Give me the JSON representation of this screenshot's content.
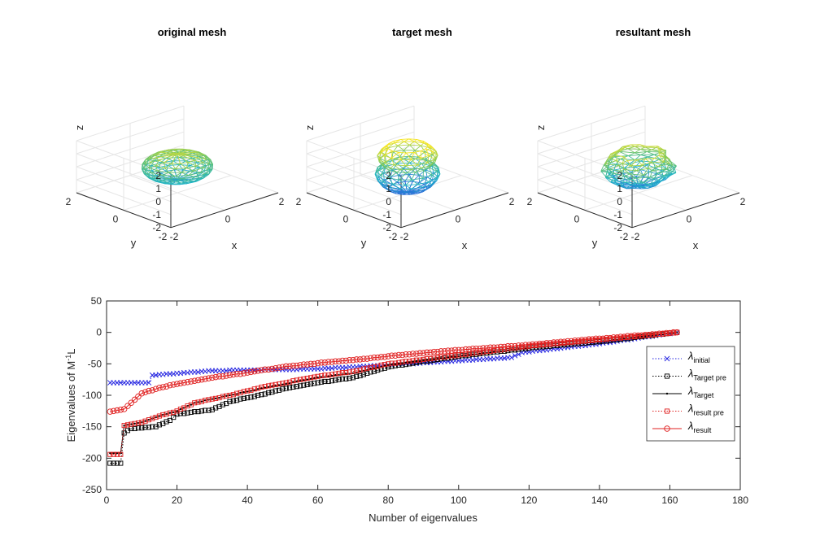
{
  "chart_data": [
    {
      "type": "3d-mesh",
      "title": "original mesh",
      "xlabel": "x",
      "ylabel": "y",
      "zlabel": "z",
      "xlim": [
        -2,
        2
      ],
      "ylim": [
        -2,
        2
      ],
      "zlim": [
        -2,
        2
      ],
      "xticks": [
        "-2",
        "0",
        "2"
      ],
      "yticks": [
        "-2",
        "0",
        "2"
      ],
      "zticks": [
        "-2",
        "-1",
        "0",
        "1",
        "2"
      ],
      "shape": "sphere",
      "colormap": [
        "#2a6fd8",
        "#1fb4c8",
        "#6cc36a",
        "#f5e626"
      ]
    },
    {
      "type": "3d-mesh",
      "title": "target mesh",
      "xlabel": "x",
      "ylabel": "y",
      "zlabel": "z",
      "xlim": [
        -2,
        2
      ],
      "ylim": [
        -2,
        2
      ],
      "zlim": [
        -2,
        2
      ],
      "xticks": [
        "-2",
        "0",
        "2"
      ],
      "yticks": [
        "-2",
        "0",
        "2"
      ],
      "zticks": [
        "-2",
        "-1",
        "0",
        "1",
        "2"
      ],
      "shape": "peanut",
      "colormap": [
        "#2a6fd8",
        "#1fb4c8",
        "#6cc36a",
        "#f5e626"
      ]
    },
    {
      "type": "3d-mesh",
      "title": "resultant mesh",
      "xlabel": "x",
      "ylabel": "y",
      "zlabel": "z",
      "xlim": [
        -2,
        2
      ],
      "ylim": [
        -2,
        2
      ],
      "zlim": [
        -2,
        2
      ],
      "xticks": [
        "-2",
        "0",
        "2"
      ],
      "yticks": [
        "-2",
        "0",
        "2"
      ],
      "zticks": [
        "-2",
        "-1",
        "0",
        "1",
        "2"
      ],
      "shape": "jagged",
      "colormap": [
        "#2a6fd8",
        "#1fb4c8",
        "#6cc36a",
        "#f5e626"
      ]
    },
    {
      "type": "line",
      "xlabel": "Number of eigenvalues",
      "ylabel": "Eigenvalues of M",
      "ylabel_sup": "-1",
      "ylabel_tail": "L",
      "xlim": [
        0,
        180
      ],
      "ylim": [
        -250,
        50
      ],
      "xticks": [
        "0",
        "20",
        "40",
        "60",
        "80",
        "100",
        "120",
        "140",
        "160",
        "180"
      ],
      "yticks": [
        "50",
        "0",
        "-50",
        "-100",
        "-150",
        "-200",
        "-250"
      ],
      "legend_position": "right",
      "n": 162,
      "series": [
        {
          "name": "λ",
          "sub": "initial",
          "color": "#2020e0",
          "marker": "x",
          "line": "dotted",
          "knots": [
            [
              1,
              -80
            ],
            [
              12,
              -80
            ],
            [
              13,
              -68
            ],
            [
              30,
              -61
            ],
            [
              60,
              -58
            ],
            [
              80,
              -52
            ],
            [
              100,
              -45
            ],
            [
              115,
              -40
            ],
            [
              118,
              -32
            ],
            [
              140,
              -18
            ],
            [
              150,
              -10
            ],
            [
              162,
              0
            ]
          ]
        },
        {
          "name": "λ",
          "sub": "Target pre",
          "color": "#000000",
          "marker": "square",
          "line": "dotted",
          "knots": [
            [
              1,
              -208
            ],
            [
              4,
              -208
            ],
            [
              5,
              -160
            ],
            [
              7,
              -153
            ],
            [
              14,
              -150
            ],
            [
              18,
              -140
            ],
            [
              20,
              -130
            ],
            [
              30,
              -123
            ],
            [
              35,
              -110
            ],
            [
              45,
              -98
            ],
            [
              50,
              -90
            ],
            [
              60,
              -80
            ],
            [
              70,
              -72
            ],
            [
              80,
              -55
            ],
            [
              100,
              -38
            ],
            [
              120,
              -25
            ],
            [
              140,
              -15
            ],
            [
              162,
              0
            ]
          ]
        },
        {
          "name": "λ",
          "sub": "Target",
          "color": "#000000",
          "marker": "dot",
          "line": "solid",
          "knots": [
            [
              1,
              -192
            ],
            [
              4,
              -192
            ],
            [
              5,
              -148
            ],
            [
              10,
              -143
            ],
            [
              15,
              -133
            ],
            [
              20,
              -125
            ],
            [
              25,
              -112
            ],
            [
              35,
              -100
            ],
            [
              45,
              -88
            ],
            [
              60,
              -72
            ],
            [
              70,
              -65
            ],
            [
              80,
              -52
            ],
            [
              100,
              -38
            ],
            [
              120,
              -25
            ],
            [
              140,
              -15
            ],
            [
              162,
              0
            ]
          ]
        },
        {
          "name": "λ",
          "sub": "result pre",
          "color": "#e02020",
          "marker": "square",
          "line": "dotted",
          "knots": [
            [
              1,
              -194
            ],
            [
              4,
              -194
            ],
            [
              5,
              -148
            ],
            [
              10,
              -143
            ],
            [
              15,
              -133
            ],
            [
              20,
              -125
            ],
            [
              25,
              -112
            ],
            [
              35,
              -100
            ],
            [
              45,
              -86
            ],
            [
              60,
              -70
            ],
            [
              70,
              -62
            ],
            [
              80,
              -50
            ],
            [
              100,
              -36
            ],
            [
              120,
              -22
            ],
            [
              140,
              -12
            ],
            [
              162,
              0
            ]
          ]
        },
        {
          "name": "λ",
          "sub": "result",
          "color": "#e02020",
          "marker": "circle",
          "line": "solid",
          "knots": [
            [
              1,
              -126
            ],
            [
              5,
              -122
            ],
            [
              10,
              -97
            ],
            [
              15,
              -88
            ],
            [
              20,
              -82
            ],
            [
              30,
              -72
            ],
            [
              40,
              -64
            ],
            [
              50,
              -55
            ],
            [
              60,
              -49
            ],
            [
              70,
              -44
            ],
            [
              80,
              -38
            ],
            [
              100,
              -28
            ],
            [
              120,
              -20
            ],
            [
              140,
              -10
            ],
            [
              162,
              0
            ]
          ]
        }
      ]
    }
  ]
}
